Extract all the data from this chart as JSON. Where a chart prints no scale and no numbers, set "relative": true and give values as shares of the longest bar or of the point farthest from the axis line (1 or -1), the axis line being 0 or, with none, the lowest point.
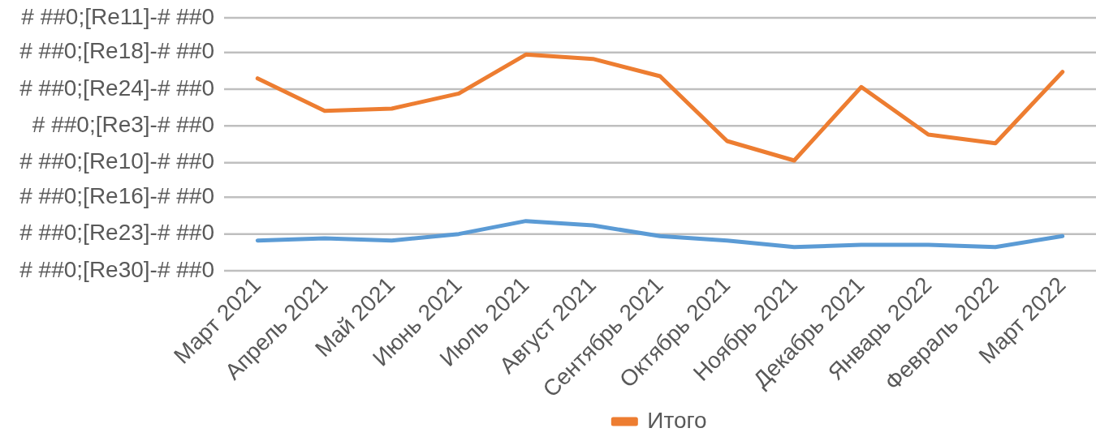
{
  "chart_data": {
    "type": "line",
    "relative": true,
    "categories": [
      "Март 2021",
      "Апрель 2021",
      "Май 2021",
      "Июнь 2021",
      "Июль 2021",
      "Август 2021",
      "Сентябрь 2021",
      "Октябрь 2021",
      "Ноябрь 2021",
      "Декабрь 2021",
      "Январь 2022",
      "Февраль 2022",
      "Март 2022"
    ],
    "series": [
      {
        "color": "#5b9bd5",
        "values": [
          0.14,
          0.15,
          0.14,
          0.17,
          0.23,
          0.21,
          0.16,
          0.14,
          0.11,
          0.12,
          0.12,
          0.11,
          0.16
        ]
      },
      {
        "name": "Итого",
        "color": "#ed7d31",
        "values": [
          0.89,
          0.74,
          0.75,
          0.82,
          1,
          0.98,
          0.9,
          0.6,
          0.51,
          0.85,
          0.63,
          0.59,
          0.92
        ]
      }
    ],
    "ref_lines": [
      {
        "axis": "y",
        "value": 0,
        "label": "# ##0;[Re30]-# ##0",
        "color": "#bfbfbf"
      },
      {
        "axis": "y",
        "value": 0.17,
        "label": "# ##0;[Re23]-# ##0",
        "color": "#bfbfbf"
      },
      {
        "axis": "y",
        "value": 0.34,
        "label": "# ##0;[Re16]-# ##0",
        "color": "#bfbfbf"
      },
      {
        "axis": "y",
        "value": 0.5,
        "label": "# ##0;[Re10]-# ##0",
        "color": "#bfbfbf"
      },
      {
        "axis": "y",
        "value": 0.67,
        "label": "# ##0;[Re3]-# ##0",
        "color": "#bfbfbf"
      },
      {
        "axis": "y",
        "value": 0.84,
        "label": "# ##0;[Re24]-# ##0",
        "color": "#bfbfbf"
      },
      {
        "axis": "y",
        "value": 1.01,
        "label": "# ##0;[Re18]-# ##0",
        "color": "#bfbfbf"
      },
      {
        "axis": "y",
        "value": 1.17,
        "label": "# ##0;[Re11]-# ##0",
        "color": "#bfbfbf"
      }
    ],
    "legend": "bottom",
    "marker": "none"
  }
}
